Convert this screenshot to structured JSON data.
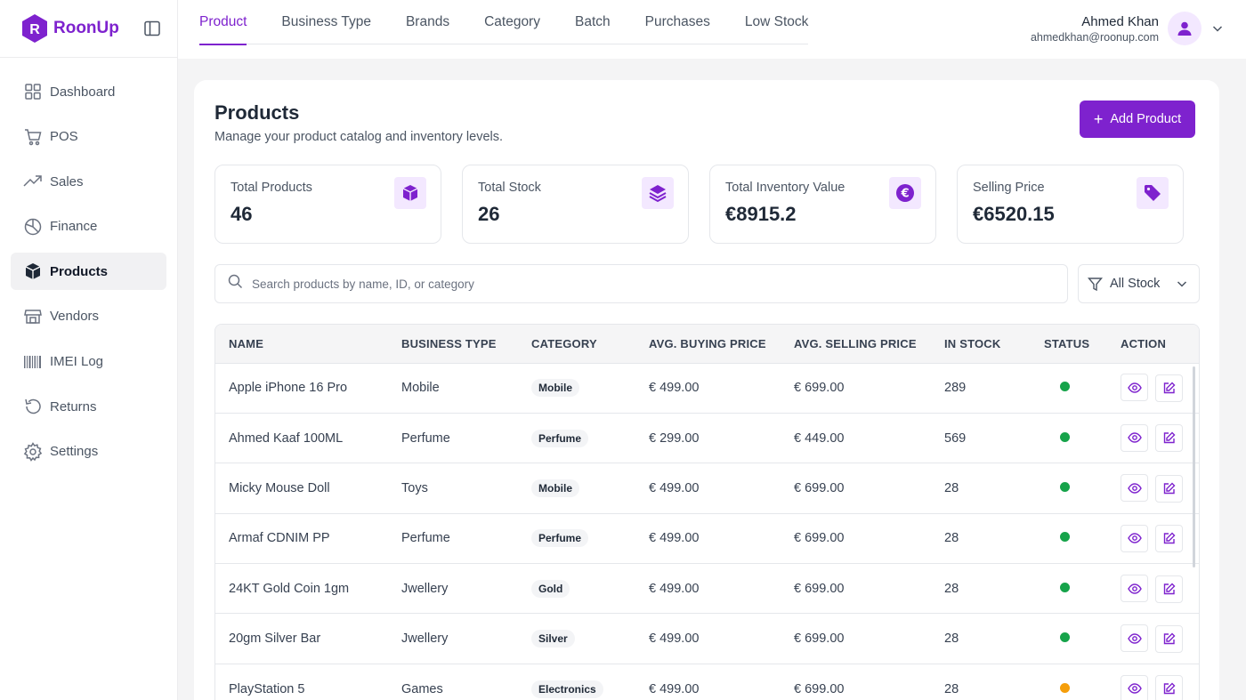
{
  "brand": {
    "name": "RoonUp",
    "logo_letter": "R"
  },
  "sidebar": {
    "items": [
      {
        "label": "Dashboard",
        "icon": "grid-icon"
      },
      {
        "label": "POS",
        "icon": "cart-icon"
      },
      {
        "label": "Sales",
        "icon": "trend-icon"
      },
      {
        "label": "Finance",
        "icon": "pie-icon"
      },
      {
        "label": "Products",
        "icon": "box-icon",
        "active": true
      },
      {
        "label": "Vendors",
        "icon": "store-icon"
      },
      {
        "label": "IMEI Log",
        "icon": "barcode-icon"
      },
      {
        "label": "Returns",
        "icon": "undo-icon"
      },
      {
        "label": "Settings",
        "icon": "gear-icon"
      }
    ]
  },
  "tabs": [
    {
      "label": "Product",
      "active": true
    },
    {
      "label": "Business Type"
    },
    {
      "label": "Brands"
    },
    {
      "label": "Category"
    },
    {
      "label": "Batch"
    },
    {
      "label": "Purchases"
    },
    {
      "label": "Low Stock"
    }
  ],
  "user": {
    "name": "Ahmed Khan",
    "email": "ahmedkhan@roonup.com"
  },
  "page": {
    "title": "Products",
    "subtitle": "Manage your product catalog and inventory levels.",
    "add_label": "Add Product"
  },
  "stats": [
    {
      "label": "Total Products",
      "value": "46",
      "icon": "cube-icon"
    },
    {
      "label": "Total Stock",
      "value": "26",
      "icon": "layers-icon"
    },
    {
      "label": "Total Inventory Value",
      "value": "€8915.2",
      "icon": "euro-icon"
    },
    {
      "label": "Selling Price",
      "value": "€6520.15",
      "icon": "tag-icon"
    }
  ],
  "search": {
    "placeholder": "Search products by name, ID, or category",
    "value": ""
  },
  "filter": {
    "label": "All Stock"
  },
  "table": {
    "columns": [
      "NAME",
      "BUSINESS TYPE",
      "CATEGORY",
      "AVG. BUYING PRICE",
      "AVG. SELLING PRICE",
      "IN STOCK",
      "STATUS",
      "ACTION"
    ],
    "rows": [
      {
        "name": "Apple iPhone 16 Pro",
        "business_type": "Mobile",
        "category": "Mobile",
        "buy": "€ 499.00",
        "sell": "€ 699.00",
        "stock": "289",
        "status_color": "#16a34a"
      },
      {
        "name": "Ahmed Kaaf 100ML",
        "business_type": "Perfume",
        "category": "Perfume",
        "buy": "€ 299.00",
        "sell": "€ 449.00",
        "stock": "569",
        "status_color": "#16a34a"
      },
      {
        "name": "Micky Mouse Doll",
        "business_type": "Toys",
        "category": "Mobile",
        "buy": "€ 499.00",
        "sell": "€ 699.00",
        "stock": "28",
        "status_color": "#16a34a"
      },
      {
        "name": "Armaf CDNIM PP",
        "business_type": "Perfume",
        "category": "Perfume",
        "buy": "€ 499.00",
        "sell": "€ 699.00",
        "stock": "28",
        "status_color": "#16a34a"
      },
      {
        "name": "24KT Gold Coin 1gm",
        "business_type": "Jwellery",
        "category": "Gold",
        "buy": "€ 499.00",
        "sell": "€ 699.00",
        "stock": "28",
        "status_color": "#16a34a"
      },
      {
        "name": "20gm Silver Bar",
        "business_type": "Jwellery",
        "category": "Silver",
        "buy": "€ 499.00",
        "sell": "€ 699.00",
        "stock": "28",
        "status_color": "#16a34a"
      },
      {
        "name": "PlayStation 5",
        "business_type": "Games",
        "category": "Electronics",
        "buy": "€ 499.00",
        "sell": "€ 699.00",
        "stock": "28",
        "status_color": "#f59e0b"
      }
    ]
  },
  "colors": {
    "accent": "#7e22ce",
    "accent_light": "#f3e8ff",
    "status_ok": "#16a34a",
    "status_warn": "#f59e0b"
  }
}
